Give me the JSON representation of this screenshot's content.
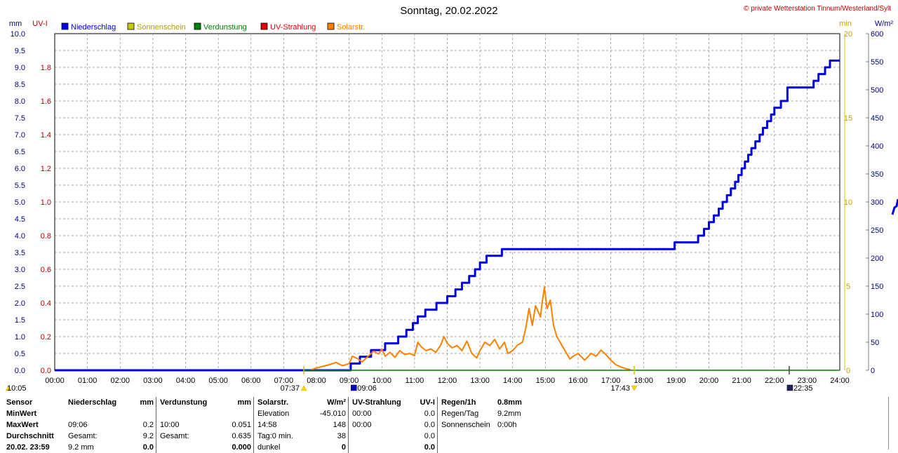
{
  "chart_data": {
    "type": "line",
    "title": "Sonntag, 20.02.2022",
    "copyright": "© private Wetterstation Tinnum/Westerland/Sylt",
    "axes": {
      "left_outer": {
        "unit": "mm",
        "min": 0,
        "max": 10,
        "ticks": [
          "0.0",
          "0.5",
          "1.0",
          "1.5",
          "2.0",
          "2.5",
          "3.0",
          "3.5",
          "4.0",
          "4.5",
          "5.0",
          "5.5",
          "6.0",
          "6.5",
          "7.0",
          "7.5",
          "8.0",
          "8.5",
          "9.0",
          "9.5",
          "10.0"
        ]
      },
      "left_inner": {
        "unit": "UV-I",
        "min": 0,
        "max": 2,
        "ticks": [
          "0.0",
          "0.2",
          "0.4",
          "0.6",
          "0.8",
          "1.0",
          "1.2",
          "1.4",
          "1.6",
          "1.8"
        ]
      },
      "right_inner": {
        "unit": "min",
        "min": 0,
        "max": 20,
        "ticks": [
          "0",
          "5",
          "10",
          "15",
          "20"
        ]
      },
      "right_outer": {
        "unit": "W/m²",
        "min": 0,
        "max": 600,
        "ticks": [
          "0",
          "50",
          "100",
          "150",
          "200",
          "250",
          "300",
          "350",
          "400",
          "450",
          "500",
          "550",
          "600"
        ]
      },
      "x_ticks": [
        "00:00",
        "01:00",
        "02:00",
        "03:00",
        "04:00",
        "05:00",
        "06:00",
        "07:00",
        "08:00",
        "09:00",
        "10:00",
        "11:00",
        "12:00",
        "13:00",
        "14:00",
        "15:00",
        "16:00",
        "17:00",
        "18:00",
        "19:00",
        "20:00",
        "21:00",
        "22:00",
        "23:00",
        "24:00"
      ]
    },
    "legend": [
      "Niederschlag",
      "Sonnenschein",
      "Verdunstung",
      "UV-Strahlung",
      "Solarstr."
    ],
    "colors": {
      "Niederschlag": "#0000e0",
      "Sonnenschein": "#c8c800",
      "Verdunstung": "#008000",
      "UV-Strahlung": "#e00000",
      "Solarstr.": "#ff8000"
    },
    "markers": {
      "moon_rise": "10:05",
      "sunrise": "07:37",
      "rain_start": "09:06",
      "sunset": "17:43",
      "moon_set": "22:35"
    },
    "series": [
      {
        "name": "Niederschlag",
        "axis": "left_outer",
        "step": true,
        "points": [
          [
            0,
            0
          ],
          [
            9.0,
            0
          ],
          [
            9.05,
            0.2
          ],
          [
            9.33,
            0.4
          ],
          [
            9.67,
            0.6
          ],
          [
            10.1,
            0.8
          ],
          [
            10.5,
            1.0
          ],
          [
            10.75,
            1.2
          ],
          [
            10.95,
            1.4
          ],
          [
            11.1,
            1.6
          ],
          [
            11.33,
            1.8
          ],
          [
            11.67,
            2.0
          ],
          [
            12.0,
            2.2
          ],
          [
            12.25,
            2.4
          ],
          [
            12.45,
            2.6
          ],
          [
            12.67,
            2.8
          ],
          [
            12.85,
            3.0
          ],
          [
            13.0,
            3.2
          ],
          [
            13.2,
            3.4
          ],
          [
            13.67,
            3.6
          ],
          [
            18.95,
            3.8
          ],
          [
            19.67,
            4.0
          ],
          [
            19.85,
            4.2
          ],
          [
            20.0,
            4.4
          ],
          [
            20.15,
            4.6
          ],
          [
            20.3,
            4.8
          ],
          [
            20.42,
            5.0
          ],
          [
            20.55,
            5.2
          ],
          [
            20.67,
            5.4
          ],
          [
            20.8,
            5.6
          ],
          [
            20.9,
            5.8
          ],
          [
            21.0,
            6.0
          ],
          [
            21.1,
            6.2
          ],
          [
            21.2,
            6.4
          ],
          [
            21.3,
            6.6
          ],
          [
            21.42,
            6.8
          ],
          [
            21.55,
            7.0
          ],
          [
            21.65,
            7.2
          ],
          [
            21.78,
            7.4
          ],
          [
            21.9,
            7.6
          ],
          [
            22.0,
            7.8
          ],
          [
            22.2,
            8.0
          ],
          [
            22.4,
            8.4
          ],
          [
            23.2,
            8.6
          ],
          [
            23.35,
            8.8
          ],
          [
            23.55,
            9.0
          ],
          [
            23.7,
            9.2
          ],
          [
            24.0,
            9.2
          ]
        ]
      },
      {
        "name": "Solarstr.",
        "axis": "right_outer",
        "points": [
          [
            7.85,
            1
          ],
          [
            8.0,
            4
          ],
          [
            8.2,
            7
          ],
          [
            8.4,
            10
          ],
          [
            8.6,
            14
          ],
          [
            8.8,
            8
          ],
          [
            9.0,
            12
          ],
          [
            9.1,
            25
          ],
          [
            9.25,
            21
          ],
          [
            9.4,
            15
          ],
          [
            9.6,
            26
          ],
          [
            9.75,
            34
          ],
          [
            9.9,
            29
          ],
          [
            10.0,
            38
          ],
          [
            10.1,
            25
          ],
          [
            10.25,
            32
          ],
          [
            10.4,
            23
          ],
          [
            10.55,
            35
          ],
          [
            10.7,
            28
          ],
          [
            10.85,
            30
          ],
          [
            11.0,
            26
          ],
          [
            11.1,
            50
          ],
          [
            11.2,
            42
          ],
          [
            11.35,
            35
          ],
          [
            11.5,
            38
          ],
          [
            11.65,
            32
          ],
          [
            11.8,
            45
          ],
          [
            11.9,
            60
          ],
          [
            12.0,
            48
          ],
          [
            12.15,
            40
          ],
          [
            12.3,
            44
          ],
          [
            12.45,
            35
          ],
          [
            12.6,
            52
          ],
          [
            12.75,
            30
          ],
          [
            12.9,
            22
          ],
          [
            13.0,
            35
          ],
          [
            13.15,
            50
          ],
          [
            13.3,
            44
          ],
          [
            13.45,
            55
          ],
          [
            13.6,
            38
          ],
          [
            13.75,
            50
          ],
          [
            13.85,
            30
          ],
          [
            14.0,
            35
          ],
          [
            14.15,
            45
          ],
          [
            14.3,
            50
          ],
          [
            14.4,
            75
          ],
          [
            14.5,
            110
          ],
          [
            14.6,
            80
          ],
          [
            14.7,
            115
          ],
          [
            14.85,
            95
          ],
          [
            14.9,
            120
          ],
          [
            14.97,
            148
          ],
          [
            15.05,
            110
          ],
          [
            15.15,
            125
          ],
          [
            15.25,
            80
          ],
          [
            15.35,
            60
          ],
          [
            15.5,
            45
          ],
          [
            15.6,
            35
          ],
          [
            15.75,
            20
          ],
          [
            15.85,
            25
          ],
          [
            16.0,
            30
          ],
          [
            16.2,
            18
          ],
          [
            16.4,
            30
          ],
          [
            16.55,
            25
          ],
          [
            16.7,
            36
          ],
          [
            16.85,
            28
          ],
          [
            17.0,
            18
          ],
          [
            17.15,
            10
          ],
          [
            17.3,
            6
          ],
          [
            17.45,
            3
          ],
          [
            17.6,
            1
          ]
        ]
      },
      {
        "name": "Verdunstung",
        "axis": "left_outer",
        "points": [
          [
            7.62,
            0
          ],
          [
            24,
            0
          ]
        ]
      }
    ]
  },
  "stats": {
    "rows": [
      [
        "Sensor",
        "Niederschlag",
        "mm",
        "Verdunstung",
        "mm",
        "Solarstr.",
        "W/m²",
        "UV-Strahlung",
        "UV-I",
        "Regen/1h",
        "0.8mm"
      ],
      [
        "MinWert",
        "",
        "",
        "",
        "",
        "Elevation",
        "-45.010",
        "00:00",
        "0.0",
        "Regen/Tag",
        "9.2mm"
      ],
      [
        "MaxWert",
        "09:06",
        "0.2",
        "10:00",
        "0.051",
        "14:58",
        "148",
        "00:00",
        "0.0",
        "Sonnenschein",
        "0:00h"
      ],
      [
        "Durchschnitt",
        "Gesamt:",
        "9.2",
        "Gesamt:",
        "0.635",
        "Tag:0 min.",
        "38",
        "",
        "0.0",
        "",
        ""
      ],
      [
        "20.02. 23:59",
        "9.2 mm",
        "0.0",
        "",
        "0.000",
        "dunkel",
        "0",
        "",
        "0.0",
        "",
        ""
      ]
    ]
  }
}
